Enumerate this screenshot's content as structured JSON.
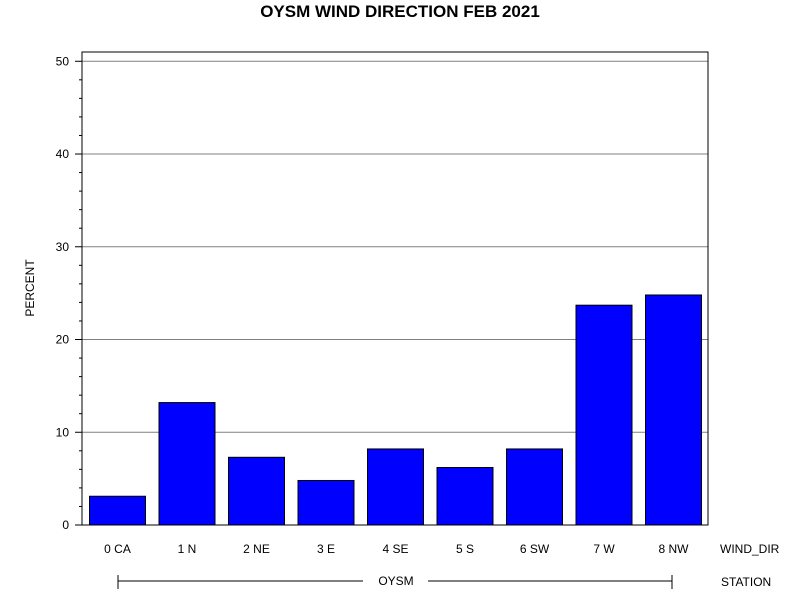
{
  "chart_data": {
    "type": "bar",
    "title": "OYSM WIND DIRECTION FEB 2021",
    "ylabel": "PERCENT",
    "xlabel": "WIND_DIR",
    "group_label": "STATION",
    "group_value": "OYSM",
    "categories": [
      "0 CA",
      "1 N",
      "2 NE",
      "3 E",
      "4 SE",
      "5 S",
      "6 SW",
      "7 W",
      "8 NW"
    ],
    "values": [
      3.1,
      13.2,
      7.3,
      4.8,
      8.2,
      6.2,
      8.2,
      23.7,
      24.8
    ],
    "ylim": [
      0,
      51
    ],
    "yticks": [
      0,
      10,
      20,
      30,
      40,
      50
    ],
    "grid": true,
    "bar_color": "#0000ff",
    "grid_color": "#808080"
  }
}
